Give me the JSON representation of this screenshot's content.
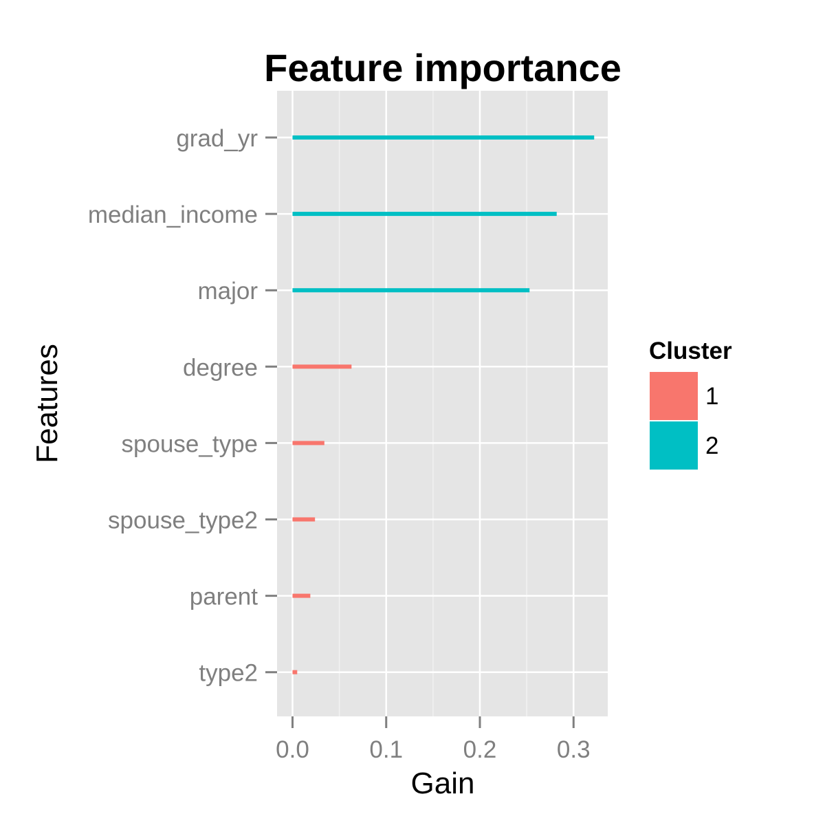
{
  "chart_data": {
    "type": "bar",
    "orientation": "horizontal",
    "title": "Feature importance",
    "xlabel": "Gain",
    "ylabel": "Features",
    "categories": [
      "grad_yr",
      "median_income",
      "major",
      "degree",
      "spouse_type",
      "spouse_type2",
      "parent",
      "type2"
    ],
    "values": [
      0.322,
      0.282,
      0.253,
      0.063,
      0.034,
      0.024,
      0.019,
      0.005
    ],
    "cluster": [
      "2",
      "2",
      "2",
      "1",
      "1",
      "1",
      "1",
      "1"
    ],
    "xlim": [
      -0.0165,
      0.3365
    ],
    "xticks": [
      0.0,
      0.1,
      0.2,
      0.3
    ],
    "xtick_labels": [
      "0.0",
      "0.1",
      "0.2",
      "0.3"
    ],
    "minor_xticks": [
      0.05,
      0.15,
      0.25
    ],
    "grid": true,
    "legend": {
      "title": "Cluster",
      "placement": "right",
      "entries": [
        {
          "label": "1",
          "color": "#F8766D"
        },
        {
          "label": "2",
          "color": "#00BFC4"
        }
      ]
    },
    "colors": {
      "panel_background": "#E5E5E5",
      "grid_major": "#FFFFFF",
      "grid_minor": "#F2F2F2",
      "tick_mark": "#7F7F7F",
      "cluster_1": "#F8766D",
      "cluster_2": "#00BFC4"
    }
  }
}
